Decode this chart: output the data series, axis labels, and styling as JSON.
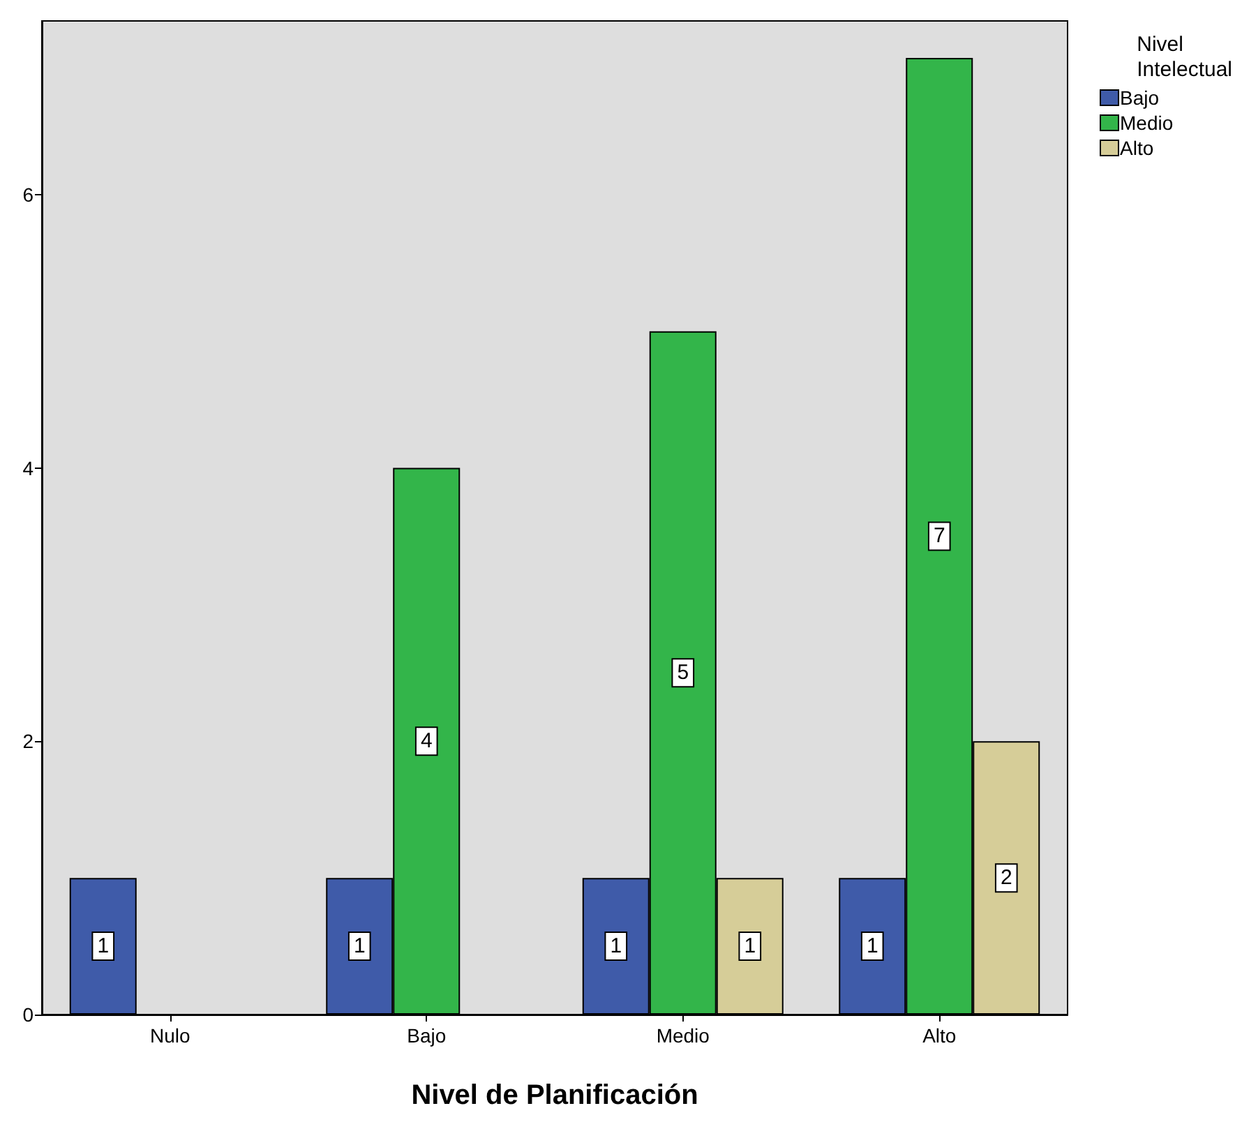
{
  "chart_data": {
    "type": "bar",
    "xlabel": "Nivel de Planificación",
    "legend_title": "Nivel Intelectual",
    "categories": [
      "Nulo",
      "Bajo",
      "Medio",
      "Alto"
    ],
    "series": [
      {
        "name": "Bajo",
        "color": "#3f5ba9",
        "values": [
          1,
          1,
          1,
          1
        ]
      },
      {
        "name": "Medio",
        "color": "#33b54a",
        "values": [
          null,
          4,
          5,
          7
        ]
      },
      {
        "name": "Alto",
        "color": "#d6cd98",
        "values": [
          null,
          null,
          1,
          2
        ]
      }
    ],
    "ylim": [
      0,
      7.27
    ],
    "yticks": [
      0,
      2,
      4,
      6
    ],
    "grid": false,
    "legend": "top right",
    "data_labels": true
  }
}
